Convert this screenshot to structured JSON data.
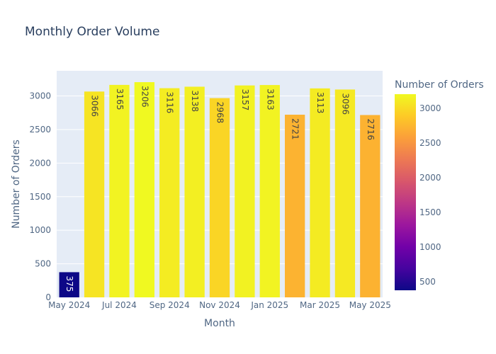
{
  "chart_data": {
    "type": "bar",
    "title": "Monthly Order Volume",
    "xlabel": "Month",
    "ylabel": "Number of Orders",
    "categories": [
      "May 2024",
      "Jun 2024",
      "Jul 2024",
      "Aug 2024",
      "Sep 2024",
      "Oct 2024",
      "Nov 2024",
      "Dec 2024",
      "Jan 2025",
      "Feb 2025",
      "Mar 2025",
      "Apr 2025",
      "May 2025"
    ],
    "x_tick_labels": [
      "May 2024",
      "Jul 2024",
      "Sep 2024",
      "Nov 2024",
      "Jan 2025",
      "Mar 2025",
      "May 2025"
    ],
    "values": [
      375,
      3066,
      3165,
      3206,
      3116,
      3138,
      2968,
      3157,
      3163,
      2721,
      3113,
      3096,
      2716
    ],
    "value_labels": [
      "375",
      "3066",
      "3165",
      "3206",
      "3116",
      "3138",
      "2968",
      "3157",
      "3163",
      "2721",
      "3113",
      "3096",
      "2716"
    ],
    "ylim": [
      0,
      3375
    ],
    "y_ticks": [
      0,
      500,
      1000,
      1500,
      2000,
      2500,
      3000
    ],
    "grid": true,
    "colorbar": {
      "title": "Number of Orders",
      "min": 375,
      "max": 3206,
      "ticks": [
        500,
        1000,
        1500,
        2000,
        2500,
        3000
      ],
      "colorscale": [
        "#0d0887",
        "#46039f",
        "#7201a8",
        "#9c179e",
        "#bd3786",
        "#d8576b",
        "#ed7953",
        "#fb9f3a",
        "#fdca26",
        "#f0f921"
      ]
    },
    "colors": {
      "plot_background": "#e5ecf6",
      "gridline": "#ffffff",
      "text": "#506784",
      "title": "#2a3f5f"
    }
  }
}
